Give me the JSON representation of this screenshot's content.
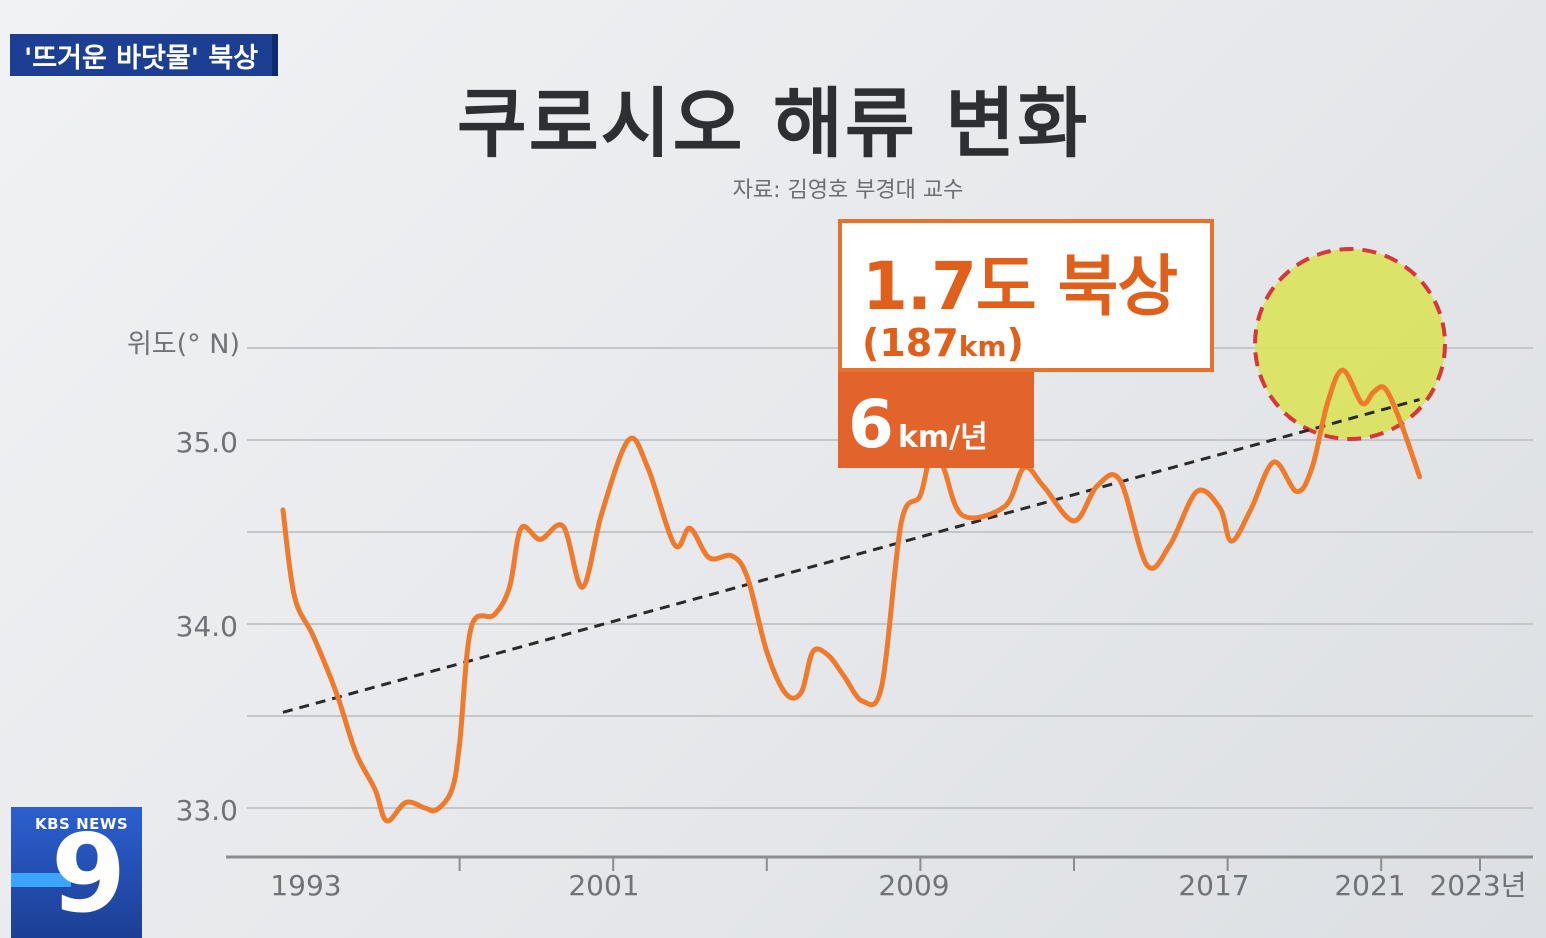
{
  "topic_badge": "'뜨거운 바닷물' 북상",
  "title": "쿠로시오 해류 변화",
  "source": "자료: 김영호 부경대 교수",
  "callout": {
    "main": "1.7도 북상",
    "sub_number": "(187",
    "sub_unit": "km",
    "sub_close": ")"
  },
  "rate": {
    "number": "6",
    "unit": "km/년"
  },
  "logo": {
    "text": "KBS NEWS",
    "number": "9"
  },
  "colors": {
    "line": "#f07a2b",
    "trend": "#2a2a2a",
    "grid": "#c4c6ca",
    "axis": "#8a8c90",
    "highlight_fill": "#d9e25a",
    "highlight_border": "#d6373a",
    "callout_orange": "#e2642a"
  },
  "chart_data": {
    "type": "line",
    "title": "쿠로시오 해류 변화",
    "ylabel": "위도(° N)",
    "xlabel": "",
    "ylim": [
      32.7,
      35.5
    ],
    "y_ticks": [
      {
        "value": 35.0,
        "label": "35.0"
      },
      {
        "value": 34.0,
        "label": "34.0"
      },
      {
        "value": 33.0,
        "label": "33.0"
      }
    ],
    "x_ticks": [
      "1993",
      "2001",
      "2009",
      "2017",
      "2021",
      "2023년"
    ],
    "series": [
      {
        "values": [
          {
            "x": 1992.4,
            "y": 34.62
          },
          {
            "x": 1992.7,
            "y": 34.15
          },
          {
            "x": 1993.2,
            "y": 33.93
          },
          {
            "x": 1993.8,
            "y": 33.62
          },
          {
            "x": 1994.3,
            "y": 33.3
          },
          {
            "x": 1994.8,
            "y": 33.1
          },
          {
            "x": 1995.1,
            "y": 32.93
          },
          {
            "x": 1995.6,
            "y": 33.03
          },
          {
            "x": 1996.1,
            "y": 33.0
          },
          {
            "x": 1996.4,
            "y": 32.99
          },
          {
            "x": 1996.8,
            "y": 33.1
          },
          {
            "x": 1997.0,
            "y": 33.35
          },
          {
            "x": 1997.3,
            "y": 33.98
          },
          {
            "x": 1997.9,
            "y": 34.05
          },
          {
            "x": 1998.3,
            "y": 34.2
          },
          {
            "x": 1998.6,
            "y": 34.52
          },
          {
            "x": 1999.1,
            "y": 34.46
          },
          {
            "x": 1999.7,
            "y": 34.53
          },
          {
            "x": 2000.2,
            "y": 34.2
          },
          {
            "x": 2000.7,
            "y": 34.6
          },
          {
            "x": 2001.4,
            "y": 35.0
          },
          {
            "x": 2001.9,
            "y": 34.85
          },
          {
            "x": 2002.6,
            "y": 34.43
          },
          {
            "x": 2003.0,
            "y": 34.52
          },
          {
            "x": 2003.5,
            "y": 34.36
          },
          {
            "x": 2004.1,
            "y": 34.37
          },
          {
            "x": 2004.5,
            "y": 34.25
          },
          {
            "x": 2005.0,
            "y": 33.85
          },
          {
            "x": 2005.5,
            "y": 33.62
          },
          {
            "x": 2005.9,
            "y": 33.63
          },
          {
            "x": 2006.2,
            "y": 33.85
          },
          {
            "x": 2006.6,
            "y": 33.83
          },
          {
            "x": 2007.0,
            "y": 33.72
          },
          {
            "x": 2007.5,
            "y": 33.58
          },
          {
            "x": 2008.0,
            "y": 33.67
          },
          {
            "x": 2008.5,
            "y": 34.55
          },
          {
            "x": 2009.0,
            "y": 34.7
          },
          {
            "x": 2009.3,
            "y": 34.95
          },
          {
            "x": 2009.6,
            "y": 34.85
          },
          {
            "x": 2010.1,
            "y": 34.59
          },
          {
            "x": 2011.2,
            "y": 34.64
          },
          {
            "x": 2011.7,
            "y": 34.85
          },
          {
            "x": 2012.2,
            "y": 34.75
          },
          {
            "x": 2013.0,
            "y": 34.56
          },
          {
            "x": 2013.6,
            "y": 34.75
          },
          {
            "x": 2014.2,
            "y": 34.78
          },
          {
            "x": 2014.9,
            "y": 34.32
          },
          {
            "x": 2015.5,
            "y": 34.43
          },
          {
            "x": 2016.2,
            "y": 34.72
          },
          {
            "x": 2016.8,
            "y": 34.63
          },
          {
            "x": 2017.1,
            "y": 34.45
          },
          {
            "x": 2017.6,
            "y": 34.62
          },
          {
            "x": 2018.2,
            "y": 34.88
          },
          {
            "x": 2018.8,
            "y": 34.72
          },
          {
            "x": 2019.2,
            "y": 34.85
          },
          {
            "x": 2019.6,
            "y": 35.2
          },
          {
            "x": 2020.0,
            "y": 35.38
          },
          {
            "x": 2020.5,
            "y": 35.2
          },
          {
            "x": 2020.8,
            "y": 35.26
          },
          {
            "x": 2021.1,
            "y": 35.28
          },
          {
            "x": 2021.5,
            "y": 35.1
          },
          {
            "x": 2022.0,
            "y": 34.8
          }
        ]
      }
    ],
    "trend_line": [
      {
        "x": 1992.4,
        "y": 33.52
      },
      {
        "x": 2022.0,
        "y": 35.22
      }
    ],
    "highlight": {
      "from": 2019.2,
      "to": 2022.0
    },
    "grid": true,
    "legend": "none"
  }
}
